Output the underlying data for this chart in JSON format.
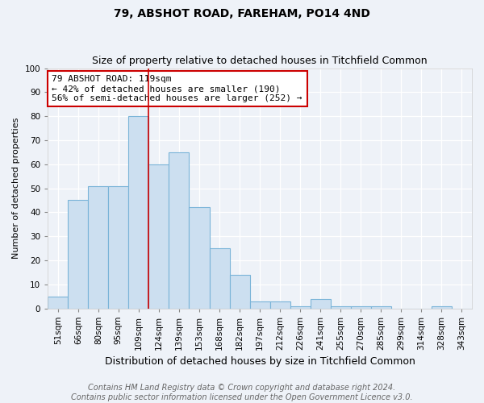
{
  "title": "79, ABSHOT ROAD, FAREHAM, PO14 4ND",
  "subtitle": "Size of property relative to detached houses in Titchfield Common",
  "xlabel": "Distribution of detached houses by size in Titchfield Common",
  "ylabel": "Number of detached properties",
  "categories": [
    "51sqm",
    "66sqm",
    "80sqm",
    "95sqm",
    "109sqm",
    "124sqm",
    "139sqm",
    "153sqm",
    "168sqm",
    "182sqm",
    "197sqm",
    "212sqm",
    "226sqm",
    "241sqm",
    "255sqm",
    "270sqm",
    "285sqm",
    "299sqm",
    "314sqm",
    "328sqm",
    "343sqm"
  ],
  "values": [
    5,
    45,
    51,
    51,
    80,
    60,
    65,
    42,
    25,
    14,
    3,
    3,
    1,
    4,
    1,
    1,
    1,
    0,
    0,
    1,
    0
  ],
  "bar_color": "#ccdff0",
  "bar_edge_color": "#7ab4d8",
  "vline_x": 4.5,
  "annotation_title": "79 ABSHOT ROAD: 119sqm",
  "annotation_line1": "← 42% of detached houses are smaller (190)",
  "annotation_line2": "56% of semi-detached houses are larger (252) →",
  "annotation_box_color": "#ffffff",
  "annotation_box_edge_color": "#cc0000",
  "vline_color": "#cc0000",
  "ylim": [
    0,
    100
  ],
  "yticks": [
    0,
    10,
    20,
    30,
    40,
    50,
    60,
    70,
    80,
    90,
    100
  ],
  "footer_line1": "Contains HM Land Registry data © Crown copyright and database right 2024.",
  "footer_line2": "Contains public sector information licensed under the Open Government Licence v3.0.",
  "background_color": "#eef2f8",
  "title_fontsize": 10,
  "subtitle_fontsize": 9,
  "xlabel_fontsize": 9,
  "ylabel_fontsize": 8,
  "tick_fontsize": 7.5,
  "footer_fontsize": 7,
  "annotation_fontsize": 8
}
